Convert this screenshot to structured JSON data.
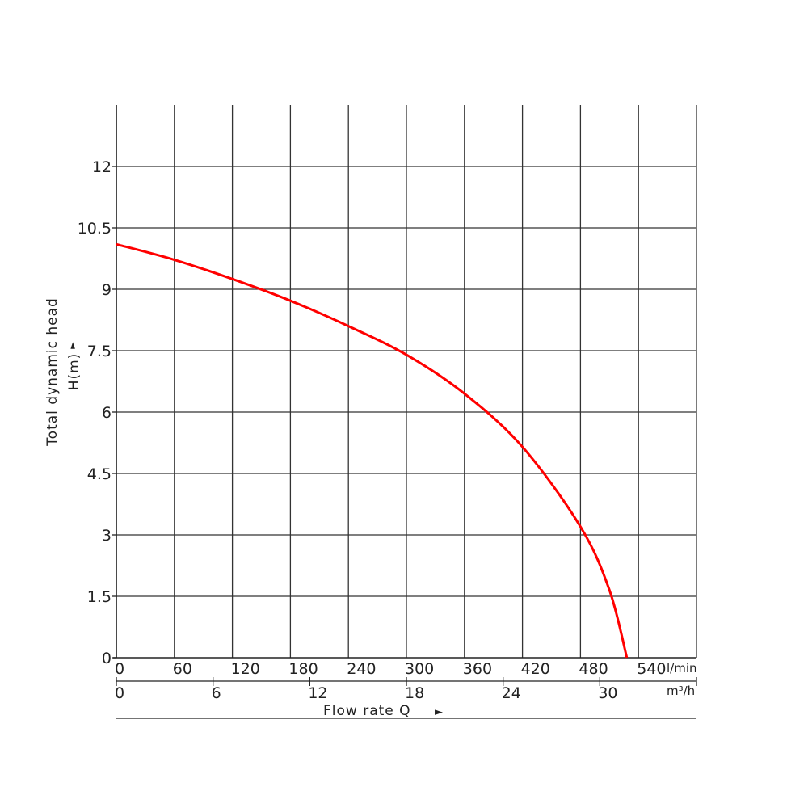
{
  "chart_data": {
    "type": "line",
    "title": "",
    "ylabel": "Total dynamic head",
    "ylabel_unit": "H(m)",
    "xlabel": "Flow rate Q",
    "arrow": "►",
    "ylim": [
      0,
      13.5
    ],
    "y_ticks": [
      "0",
      "1.5",
      "3",
      "4.5",
      "6",
      "7.5",
      "9",
      "10.5",
      "12"
    ],
    "x_axes": [
      {
        "unit": "l/min",
        "range": [
          0,
          600
        ],
        "ticks": [
          "0",
          "60",
          "120",
          "180",
          "240",
          "300",
          "360",
          "420",
          "480",
          "540"
        ]
      },
      {
        "unit": "m³/h",
        "range": [
          0,
          36
        ],
        "ticks": [
          "0",
          "6",
          "12",
          "18",
          "24",
          "30"
        ]
      }
    ],
    "grid": true,
    "series": [
      {
        "color": "#ff0000",
        "x_unit": "l/min",
        "x": [
          0,
          60,
          120,
          180,
          240,
          300,
          360,
          420,
          480,
          510,
          528
        ],
        "y": [
          10.1,
          9.72,
          9.25,
          8.72,
          8.1,
          7.4,
          6.45,
          5.15,
          3.2,
          1.65,
          0
        ]
      }
    ]
  }
}
